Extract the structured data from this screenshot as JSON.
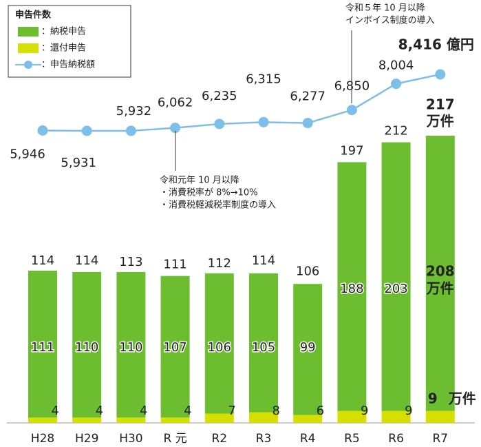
{
  "chart_data": {
    "type": "bar",
    "categories": [
      "H28",
      "H29",
      "H30",
      "R 元",
      "R2",
      "R3",
      "R4",
      "R5",
      "R6",
      "R7"
    ],
    "legend_title": "申告件数",
    "unit": "万件",
    "series": [
      {
        "name": "：納税申告",
        "color": "#6dbd31",
        "values": [
          111,
          110,
          110,
          107,
          106,
          105,
          99,
          188,
          203,
          208
        ]
      },
      {
        "name": "：還付申告",
        "color": "#d6e000",
        "values": [
          4,
          4,
          4,
          4,
          7,
          8,
          6,
          9,
          9,
          9
        ]
      }
    ],
    "totals": [
      114,
      114,
      113,
      111,
      112,
      114,
      106,
      197,
      212,
      217
    ],
    "line": {
      "type": "line",
      "name": "：申告納税額",
      "color": "#7dbfe9",
      "values": [
        5946,
        5931,
        5932,
        6062,
        6235,
        6315,
        6277,
        6850,
        8004,
        8416
      ],
      "value_labels": [
        "5,946",
        "5,931",
        "5,932",
        "6,062",
        "6,235",
        "6,315",
        "6,277",
        "6,850",
        "8,004",
        "8,416 億円"
      ]
    },
    "annotations": [
      {
        "lines": [
          "令和元年 10 月以降",
          "・消費税率が 8%→10%",
          "・消費税軽減税率制度の導入"
        ]
      },
      {
        "lines": [
          "令和５年 10 月以降",
          "インボイス制度の導入"
        ]
      }
    ]
  }
}
